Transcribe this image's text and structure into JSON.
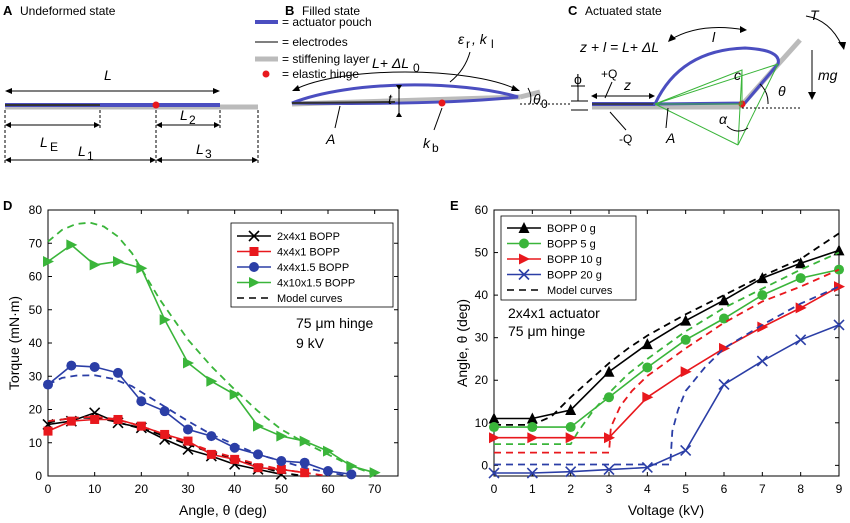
{
  "panels": {
    "A": {
      "letter": "A",
      "title": "Undeformed state",
      "legend": [
        "= actuator pouch",
        "= electrodes",
        "= stiffening layer",
        "= elastic hinge"
      ],
      "labels": {
        "L": "L",
        "LE": "L",
        "LE_sub": "E",
        "L1": "L",
        "L1_sub": "1",
        "L2": "L",
        "L2_sub": "2",
        "L3": "L",
        "L3_sub": "3"
      }
    },
    "B": {
      "letter": "B",
      "title": "Filled state",
      "labels": {
        "dL": "L+ ΔL",
        "dL_sub": "0",
        "eps": "ε",
        "eps_sub": "r",
        "kl": ", k",
        "kl_sub": "l",
        "t": "t",
        "theta0": "θ",
        "theta0_sub": "0",
        "A": "A",
        "kb": "k",
        "kb_sub": "b"
      }
    },
    "C": {
      "letter": "C",
      "title": "Actuated state",
      "labels": {
        "eq": "z + l = L+ ΔL",
        "l": "l",
        "c": "c",
        "T": "T",
        "mg": "mg",
        "theta": "θ",
        "alpha": "α",
        "phi": "ϕ",
        "plusQ": "+Q",
        "minusQ": "-Q",
        "z": "z",
        "A": "A"
      }
    },
    "D": {
      "letter": "D",
      "annot1": "75 μm hinge",
      "annot2": "9 kV"
    },
    "E": {
      "letter": "E",
      "annot1": "2x4x1 actuator",
      "annot2": "75 μm hinge"
    }
  },
  "chart_data": [
    {
      "type": "line",
      "panel": "D",
      "xlabel": "Angle, θ (deg)",
      "ylabel": "Torque (mN·m)",
      "xlim": [
        0,
        75
      ],
      "ylim": [
        0,
        80
      ],
      "xticks": [
        0,
        10,
        20,
        30,
        40,
        50,
        60,
        70
      ],
      "yticks": [
        0,
        10,
        20,
        30,
        40,
        50,
        60,
        70,
        80
      ],
      "grid": false,
      "legend_position": "top-right",
      "series": [
        {
          "name": "2x4x1      BOPP",
          "color": "#000000",
          "marker": "x",
          "x": [
            0,
            5,
            10,
            15,
            20,
            25,
            30,
            35,
            40,
            45,
            50
          ],
          "y": [
            15.5,
            16.5,
            19,
            16,
            14.5,
            11,
            8,
            6,
            3.5,
            2,
            0.5
          ],
          "model_x": [
            0,
            3,
            6,
            10,
            14,
            18,
            22,
            26,
            30,
            35,
            40,
            45,
            50,
            55
          ],
          "model_y": [
            16,
            17,
            17.5,
            17.5,
            16.5,
            15,
            13.5,
            11.5,
            9.5,
            7,
            5,
            3,
            1,
            0
          ]
        },
        {
          "name": "4x4x1      BOPP",
          "color": "#e8181d",
          "marker": "square",
          "x": [
            0,
            5,
            10,
            15,
            20,
            25,
            30,
            35,
            40,
            45,
            50,
            55
          ],
          "y": [
            13.5,
            16.5,
            17,
            17,
            15,
            12.5,
            10.5,
            6.5,
            5,
            2.5,
            2,
            1
          ],
          "model_x": [
            0,
            3,
            6,
            10,
            14,
            18,
            22,
            26,
            30,
            35,
            40,
            45,
            50,
            55,
            60
          ],
          "model_y": [
            16.5,
            17,
            17.5,
            17.8,
            17.2,
            15.8,
            14,
            12,
            10,
            7.5,
            5.5,
            3.5,
            2,
            1,
            0
          ]
        },
        {
          "name": "4x4x1.5   BOPP",
          "color": "#2b3ea6",
          "marker": "circle",
          "x": [
            0,
            5,
            10,
            15,
            20,
            25,
            30,
            35,
            40,
            45,
            50,
            55,
            60,
            65
          ],
          "y": [
            27.5,
            33.2,
            32.8,
            31,
            22.5,
            19.5,
            14,
            12,
            8.5,
            6.5,
            4.5,
            4,
            1.5,
            0.5
          ],
          "model_x": [
            0,
            3,
            6,
            10,
            14,
            18,
            22,
            26,
            30,
            35,
            40,
            45,
            50,
            55,
            60,
            65
          ],
          "model_y": [
            27.5,
            29.5,
            30.2,
            30.3,
            29.2,
            27,
            23.5,
            20,
            16.5,
            12.5,
            9.5,
            6.5,
            4.5,
            2.5,
            1,
            0
          ]
        },
        {
          "name": "4x10x1.5 BOPP",
          "color": "#3ab53a",
          "marker": "triangle-right",
          "x": [
            0,
            5,
            10,
            15,
            20,
            25,
            30,
            35,
            40,
            45,
            50,
            55,
            60,
            65,
            70
          ],
          "y": [
            64.5,
            69.5,
            63.5,
            64.5,
            62.5,
            47,
            34,
            28.5,
            24.5,
            15,
            12,
            10.5,
            7.5,
            3,
            1
          ],
          "model_x": [
            0,
            3,
            6,
            9,
            12,
            15,
            18,
            21,
            24,
            27,
            30,
            35,
            40,
            45,
            50,
            55,
            60,
            65,
            70
          ],
          "model_y": [
            70.5,
            74,
            75.8,
            76.2,
            75,
            72,
            67,
            60,
            53,
            47,
            41,
            33,
            26,
            19.5,
            14,
            10,
            6.5,
            3,
            0.5
          ]
        }
      ],
      "model_legend": "Model curves"
    },
    {
      "type": "line",
      "panel": "E",
      "xlabel": "Voltage (kV)",
      "ylabel": "Angle, θ (deg)",
      "xlim": [
        0,
        9
      ],
      "ylim": [
        -2.5,
        60
      ],
      "xticks": [
        0,
        1,
        2,
        3,
        4,
        5,
        6,
        7,
        8,
        9
      ],
      "yticks": [
        0,
        10,
        20,
        30,
        40,
        50,
        60
      ],
      "grid": false,
      "legend_position": "top-left",
      "series": [
        {
          "name": "BOPP   0 g",
          "color": "#000000",
          "marker": "triangle-up",
          "x": [
            0,
            1,
            2,
            3,
            4,
            5,
            6,
            7,
            8,
            9
          ],
          "y": [
            11,
            11,
            13,
            22,
            28.5,
            34,
            38.8,
            44,
            47.5,
            50.5
          ],
          "model_x": [
            0,
            1,
            1.5,
            2,
            2.5,
            3,
            3.5,
            4,
            5,
            6,
            7,
            8,
            9
          ],
          "model_y": [
            9.5,
            9.5,
            11.5,
            16,
            20,
            24,
            27.5,
            30.5,
            35.5,
            40,
            44.5,
            48.5,
            54.5
          ]
        },
        {
          "name": "BOPP   5 g",
          "color": "#3ab53a",
          "marker": "circle",
          "x": [
            0,
            1,
            2,
            3,
            4,
            5,
            6,
            7,
            8,
            9
          ],
          "y": [
            9,
            9,
            9,
            16,
            23,
            29.5,
            34.5,
            40,
            44,
            46
          ],
          "model_x": [
            0,
            1,
            2,
            2.2,
            2.6,
            3,
            3.5,
            4,
            5,
            6,
            7,
            8,
            9
          ],
          "model_y": [
            5,
            5,
            5,
            8,
            13,
            17,
            21.5,
            25,
            31.5,
            37,
            41.5,
            46,
            50
          ]
        },
        {
          "name": "BOPP 10 g",
          "color": "#e8181d",
          "marker": "triangle-right",
          "x": [
            0,
            1,
            2,
            3,
            4,
            5,
            6,
            7,
            8,
            9
          ],
          "y": [
            6.5,
            6.5,
            6.5,
            6.5,
            16,
            22,
            27.5,
            32.5,
            37,
            42
          ],
          "model_x": [
            0,
            1,
            2,
            3,
            3.05,
            3.3,
            3.6,
            4,
            5,
            6,
            7,
            8,
            9
          ],
          "model_y": [
            3,
            3,
            3,
            3,
            9,
            14,
            17.5,
            21,
            27.5,
            33.5,
            38.5,
            42,
            46
          ]
        },
        {
          "name": "BOPP 20 g",
          "color": "#2b3ea6",
          "marker": "x",
          "x": [
            0,
            1,
            2,
            3,
            4,
            5,
            6,
            7,
            8,
            9
          ],
          "y": [
            -1.8,
            -1.8,
            -1.5,
            -1,
            -0.5,
            3.5,
            19,
            24.5,
            29.5,
            33
          ],
          "model_x": [
            0,
            1,
            2,
            3,
            4,
            4.6,
            4.65,
            4.8,
            5,
            5.5,
            6,
            7,
            8,
            9
          ],
          "model_y": [
            0.2,
            0.2,
            0.2,
            0.2,
            0.2,
            0.2,
            8,
            13,
            17.5,
            23,
            27.5,
            33,
            38,
            42
          ]
        }
      ],
      "model_legend": "Model curves"
    }
  ]
}
